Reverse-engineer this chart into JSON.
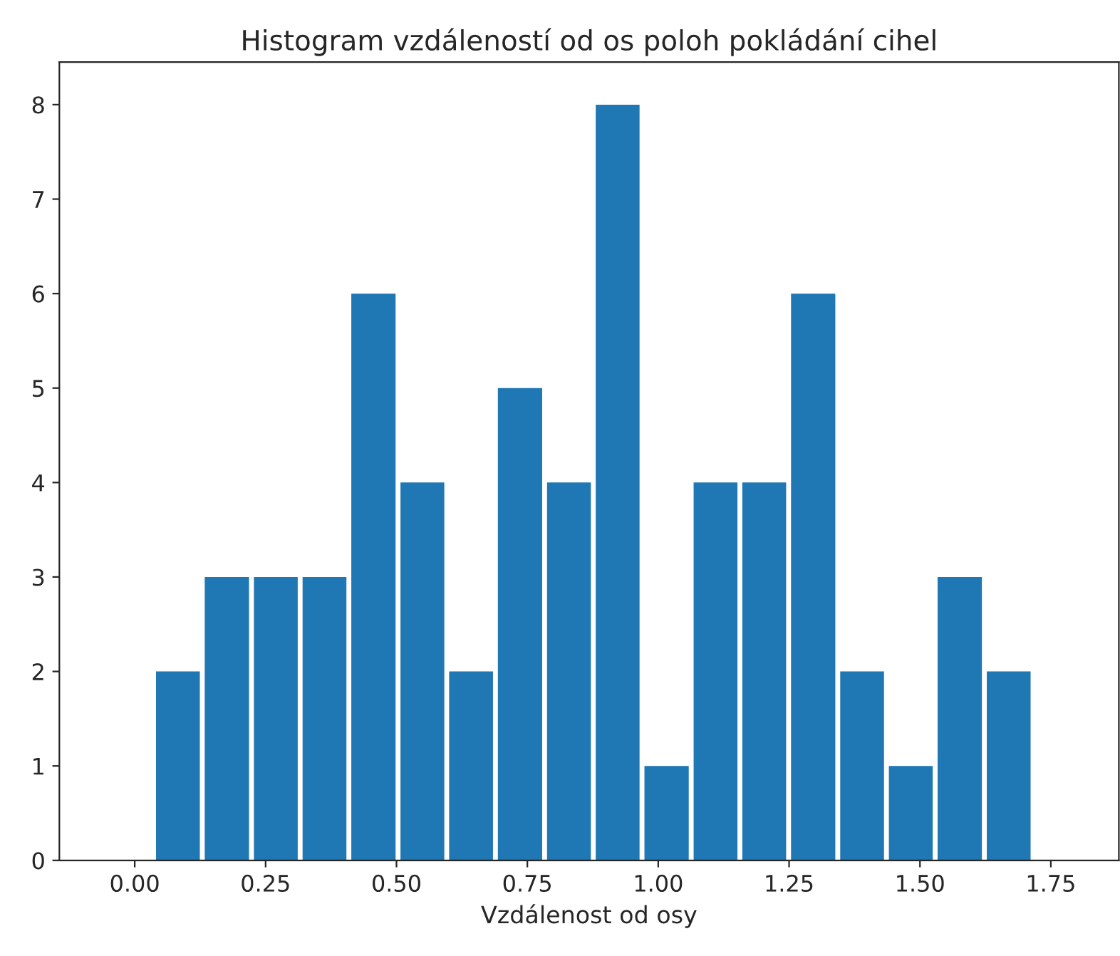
{
  "chart_data": {
    "type": "histogram",
    "title": "Histogram vzdáleností od os poloh pokládání cihel",
    "xlabel": "Vzdálenost od osy",
    "bins": [
      0.036,
      0.129,
      0.223,
      0.316,
      0.409,
      0.503,
      0.596,
      0.689,
      0.783,
      0.876,
      0.969,
      1.063,
      1.156,
      1.249,
      1.343,
      1.436,
      1.529,
      1.623,
      1.716
    ],
    "values": [
      2,
      3,
      3,
      3,
      6,
      4,
      2,
      5,
      4,
      8,
      1,
      4,
      4,
      6,
      2,
      1,
      3,
      2
    ],
    "color": "#1f77b4",
    "xlim": [
      -0.144,
      1.88
    ],
    "ylim": [
      0,
      8.45
    ],
    "xticks": [
      {
        "value": 0,
        "label": "0.00"
      },
      {
        "value": 0.25,
        "label": "0.25"
      },
      {
        "value": 0.5,
        "label": "0.50"
      },
      {
        "value": 0.75,
        "label": "0.75"
      },
      {
        "value": 1,
        "label": "1.00"
      },
      {
        "value": 1.25,
        "label": "1.25"
      },
      {
        "value": 1.5,
        "label": "1.50"
      },
      {
        "value": 1.75,
        "label": "1.75"
      }
    ],
    "yticks": [
      0,
      1,
      2,
      3,
      4,
      5,
      6,
      7,
      8
    ],
    "grid": false
  }
}
